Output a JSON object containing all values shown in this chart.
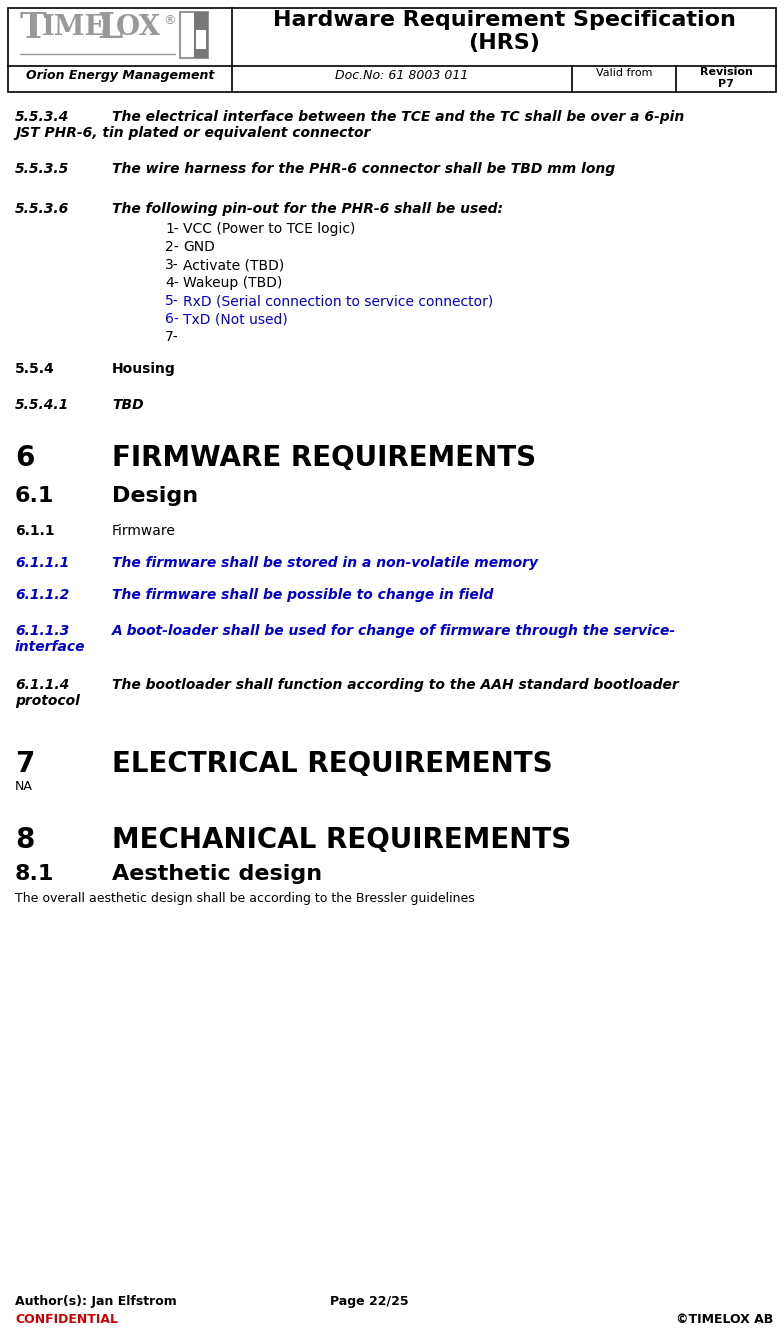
{
  "title": "Hardware Requirement Specification\n(HRS)",
  "doc_project": "Orion Energy Management",
  "doc_no": "Doc.No: 61 8003 011",
  "doc_valid_from": "Valid from",
  "doc_revision": "Revision\nP7",
  "author": "Author(s): Jan Elfstrom",
  "page": "Page 22/25",
  "confidential": "CONFIDENTIAL",
  "copyright": "©TIMELOX AB",
  "bg_color": "#ffffff",
  "blue_color": "#0000cc",
  "red_color": "#cc0000",
  "black_color": "#000000",
  "gray_color": "#999999",
  "pin_items": [
    {
      "num": "1-",
      "text": "  VCC (Power to TCE logic)",
      "color": "#000000"
    },
    {
      "num": "2-",
      "text": "  GND",
      "color": "#000000"
    },
    {
      "num": "3-",
      "text": "   Activate (TBD)",
      "color": "#000000"
    },
    {
      "num": "4-",
      "text": "  Wakeup (TBD)",
      "color": "#000000"
    },
    {
      "num": "5-",
      "text": "   RxD (Serial connection to service connector)",
      "color": "#0000cc"
    },
    {
      "num": "6-",
      "text": "   TxD (Not used)",
      "color": "#0000cc"
    },
    {
      "num": "7-",
      "text": "",
      "color": "#000000"
    }
  ]
}
